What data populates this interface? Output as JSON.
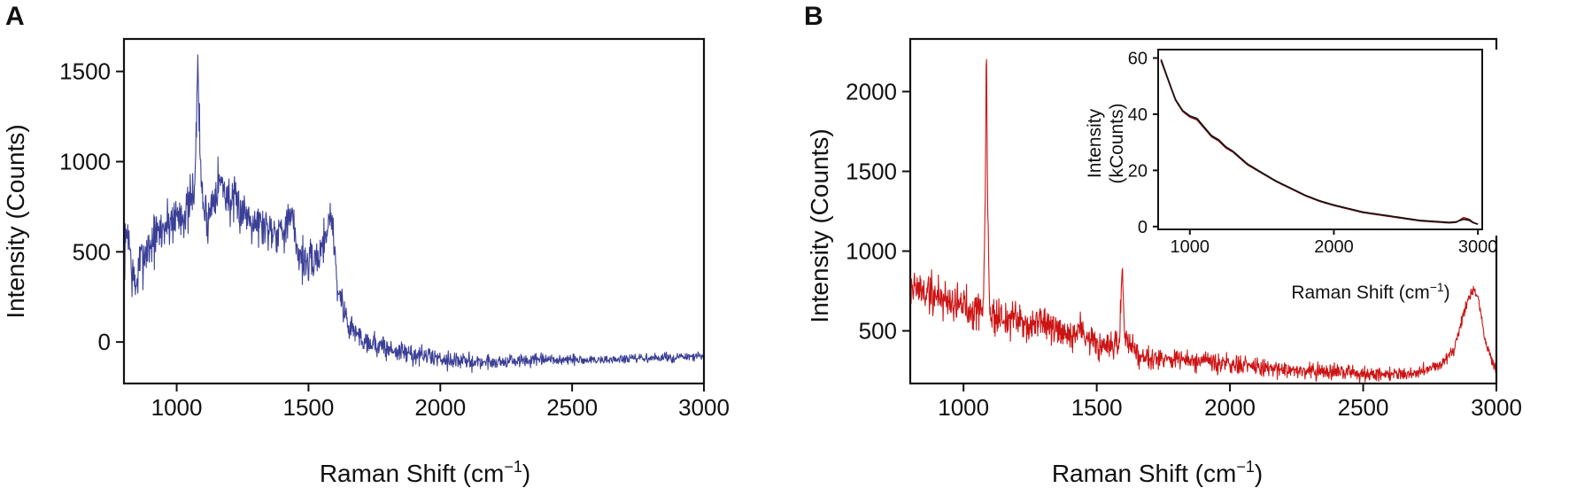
{
  "chart_data": [
    {
      "panel_label": "A",
      "type": "line",
      "xlabel": "Raman Shift (cm",
      "xlabel_sup": "−1",
      "xlabel_tail": ")",
      "ylabel": "Intensity (Counts)",
      "xlim": [
        800,
        3000
      ],
      "ylim": [
        -230,
        1680
      ],
      "xticks": [
        1000,
        1500,
        2000,
        2500,
        3000
      ],
      "xtick_labels": [
        "1000",
        "1500",
        "2000",
        "2500",
        "3000"
      ],
      "yticks": [
        0,
        500,
        1000,
        1500
      ],
      "ytick_labels": [
        "0",
        "500",
        "1000",
        "1500"
      ],
      "grid": false,
      "series": [
        {
          "color": "#3b3f96",
          "noise": 80,
          "seed": 7,
          "baseline": [
            [
              800,
              450
            ],
            [
              815,
              650
            ],
            [
              830,
              380
            ],
            [
              845,
              300
            ],
            [
              860,
              430
            ],
            [
              880,
              500
            ],
            [
              920,
              580
            ],
            [
              960,
              650
            ],
            [
              1000,
              700
            ],
            [
              1040,
              720
            ],
            [
              1060,
              800
            ],
            [
              1070,
              950
            ],
            [
              1076,
              1200
            ],
            [
              1080,
              1650
            ],
            [
              1084,
              1300
            ],
            [
              1092,
              900
            ],
            [
              1105,
              720
            ],
            [
              1120,
              680
            ],
            [
              1140,
              820
            ],
            [
              1160,
              900
            ],
            [
              1180,
              850
            ],
            [
              1200,
              780
            ],
            [
              1260,
              720
            ],
            [
              1320,
              650
            ],
            [
              1380,
              620
            ],
            [
              1420,
              650
            ],
            [
              1440,
              680
            ],
            [
              1460,
              500
            ],
            [
              1500,
              420
            ],
            [
              1540,
              480
            ],
            [
              1570,
              620
            ],
            [
              1582,
              720
            ],
            [
              1595,
              600
            ],
            [
              1610,
              300
            ],
            [
              1650,
              100
            ],
            [
              1700,
              20
            ],
            [
              1800,
              -40
            ],
            [
              1900,
              -70
            ],
            [
              2000,
              -90
            ],
            [
              2100,
              -110
            ],
            [
              2200,
              -110
            ],
            [
              2300,
              -105
            ],
            [
              2400,
              -100
            ],
            [
              2500,
              -100
            ],
            [
              2600,
              -100
            ],
            [
              2700,
              -95
            ],
            [
              2800,
              -90
            ],
            [
              2900,
              -85
            ],
            [
              3000,
              -80
            ]
          ],
          "noise_profile": [
            [
              800,
              110
            ],
            [
              1000,
              110
            ],
            [
              1200,
              100
            ],
            [
              1500,
              90
            ],
            [
              1600,
              75
            ],
            [
              1700,
              55
            ],
            [
              2000,
              38
            ],
            [
              2500,
              22
            ],
            [
              3000,
              18
            ]
          ]
        }
      ]
    },
    {
      "panel_label": "B",
      "type": "line",
      "xlabel": "Raman Shift (cm",
      "xlabel_sup": "−1",
      "xlabel_tail": ")",
      "ylabel": "Intensity (Counts)",
      "xlim": [
        800,
        3000
      ],
      "ylim": [
        170,
        2330
      ],
      "xticks": [
        1000,
        1500,
        2000,
        2500,
        3000
      ],
      "xtick_labels": [
        "1000",
        "1500",
        "2000",
        "2500",
        "3000"
      ],
      "yticks": [
        500,
        1000,
        1500,
        2000
      ],
      "ytick_labels": [
        "500",
        "1000",
        "1500",
        "2000"
      ],
      "grid": false,
      "series": [
        {
          "color": "#cc1414",
          "noise": 80,
          "seed": 19,
          "baseline": [
            [
              800,
              780
            ],
            [
              830,
              760
            ],
            [
              860,
              740
            ],
            [
              900,
              720
            ],
            [
              950,
              690
            ],
            [
              1000,
              660
            ],
            [
              1050,
              640
            ],
            [
              1075,
              660
            ],
            [
              1082,
              1400
            ],
            [
              1086,
              2300
            ],
            [
              1090,
              1400
            ],
            [
              1098,
              600
            ],
            [
              1150,
              580
            ],
            [
              1200,
              560
            ],
            [
              1250,
              540
            ],
            [
              1300,
              560
            ],
            [
              1350,
              480
            ],
            [
              1400,
              450
            ],
            [
              1440,
              520
            ],
            [
              1460,
              470
            ],
            [
              1500,
              400
            ],
            [
              1550,
              380
            ],
            [
              1585,
              420
            ],
            [
              1596,
              920
            ],
            [
              1604,
              480
            ],
            [
              1650,
              360
            ],
            [
              1700,
              340
            ],
            [
              1800,
              320
            ],
            [
              1900,
              300
            ],
            [
              2000,
              290
            ],
            [
              2100,
              270
            ],
            [
              2200,
              260
            ],
            [
              2300,
              250
            ],
            [
              2400,
              240
            ],
            [
              2500,
              235
            ],
            [
              2600,
              230
            ],
            [
              2700,
              240
            ],
            [
              2780,
              280
            ],
            [
              2840,
              380
            ],
            [
              2880,
              620
            ],
            [
              2910,
              760
            ],
            [
              2930,
              720
            ],
            [
              2960,
              420
            ],
            [
              3000,
              250
            ]
          ],
          "noise_profile": [
            [
              800,
              110
            ],
            [
              1000,
              100
            ],
            [
              1100,
              95
            ],
            [
              1300,
              85
            ],
            [
              1500,
              70
            ],
            [
              1700,
              55
            ],
            [
              2000,
              45
            ],
            [
              2500,
              35
            ],
            [
              2800,
              30
            ],
            [
              3000,
              25
            ]
          ]
        }
      ],
      "inset": {
        "type": "line",
        "xlabel": "Raman Shift (cm",
        "xlabel_sup": "−1",
        "xlabel_tail": ")",
        "ylabel_line1": "Intensity",
        "ylabel_line2": "(kCounts)",
        "xlim": [
          780,
          3030
        ],
        "ylim": [
          -1,
          63
        ],
        "xticks": [
          1000,
          2000,
          3000
        ],
        "xtick_labels": [
          "1000",
          "2000",
          "3000"
        ],
        "yticks": [
          0,
          20,
          40,
          60
        ],
        "ytick_labels": [
          "0",
          "20",
          "40",
          "60"
        ],
        "series": [
          {
            "color": "#8b1a1a",
            "baseline": [
              [
                800,
                59
              ],
              [
                850,
                52
              ],
              [
                900,
                45
              ],
              [
                950,
                41
              ],
              [
                1000,
                39
              ],
              [
                1050,
                38
              ],
              [
                1100,
                35
              ],
              [
                1150,
                32
              ],
              [
                1200,
                30.5
              ],
              [
                1250,
                28
              ],
              [
                1300,
                26.5
              ],
              [
                1400,
                22
              ],
              [
                1500,
                19
              ],
              [
                1600,
                16
              ],
              [
                1700,
                13.5
              ],
              [
                1800,
                11
              ],
              [
                1900,
                9
              ],
              [
                2000,
                7.5
              ],
              [
                2200,
                5
              ],
              [
                2400,
                3.5
              ],
              [
                2600,
                2
              ],
              [
                2800,
                1.3
              ],
              [
                2850,
                1.5
              ],
              [
                2900,
                3.2
              ],
              [
                2940,
                2.6
              ],
              [
                2970,
                1.4
              ],
              [
                3000,
                0.8
              ]
            ]
          },
          {
            "color": "#111111",
            "baseline": [
              [
                800,
                59.5
              ],
              [
                850,
                52.3
              ],
              [
                900,
                45.3
              ],
              [
                950,
                41.3
              ],
              [
                1000,
                39.4
              ],
              [
                1050,
                38.5
              ],
              [
                1100,
                35.4
              ],
              [
                1150,
                32.4
              ],
              [
                1200,
                30.9
              ],
              [
                1250,
                28.4
              ],
              [
                1300,
                26.8
              ],
              [
                1400,
                22.3
              ],
              [
                1500,
                19.2
              ],
              [
                1600,
                16.2
              ],
              [
                1700,
                13.7
              ],
              [
                1800,
                11.2
              ],
              [
                1900,
                9.2
              ],
              [
                2000,
                7.7
              ],
              [
                2200,
                5.2
              ],
              [
                2400,
                3.7
              ],
              [
                2600,
                2.2
              ],
              [
                2800,
                1.5
              ],
              [
                2850,
                1.7
              ],
              [
                2900,
                2.6
              ],
              [
                2940,
                2.2
              ],
              [
                2970,
                1.3
              ],
              [
                3000,
                0.9
              ]
            ]
          }
        ]
      }
    }
  ]
}
